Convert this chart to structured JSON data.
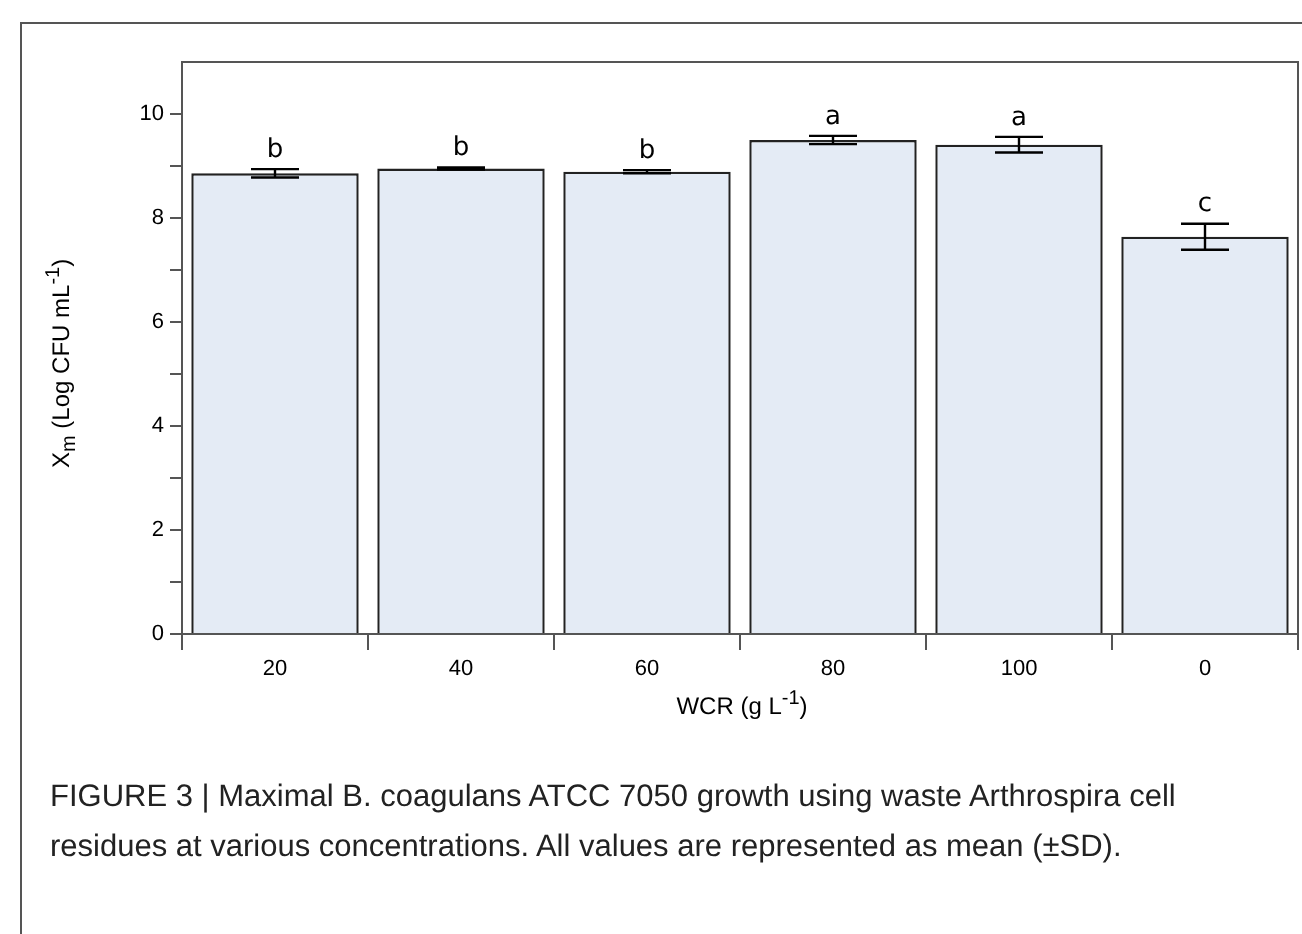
{
  "chart_data": {
    "type": "bar",
    "xlabel": "WCR (g L$^{-1}$)",
    "ylabel": "X$_{m}$ (Log CFU mL$^{-1}$)",
    "categories": [
      "20",
      "40",
      "60",
      "80",
      "100",
      "0"
    ],
    "values": [
      8.86,
      8.95,
      8.89,
      9.5,
      9.41,
      7.64
    ],
    "errors": [
      0.08,
      0.02,
      0.03,
      0.08,
      0.15,
      0.25
    ],
    "color": "#e4ebf5",
    "ylim": [
      0,
      11
    ],
    "yticks": [
      0,
      {
        "value": 1,
        "label": null
      },
      2,
      {
        "value": 3,
        "label": null
      },
      4,
      {
        "value": 5,
        "label": null
      },
      6,
      {
        "value": 7,
        "label": null
      },
      8,
      {
        "value": 9,
        "label": null
      },
      10
    ],
    "grid": false,
    "legend": false,
    "annotations": [
      {
        "text": "b",
        "x": "20",
        "y": 8.94
      },
      {
        "text": "b",
        "x": "40",
        "y": 8.97
      },
      {
        "text": "b",
        "x": "60",
        "y": 8.92
      },
      {
        "text": "a",
        "x": "80",
        "y": 9.58
      },
      {
        "text": "a",
        "x": "100",
        "y": 9.56
      },
      {
        "text": "c",
        "x": "0",
        "y": 7.89
      },
      "FIGURE 3 | Maximal B. coagulans ATCC 7050 growth using waste Arthrospira cell residues at various concentrations. All values are represented as mean (±SD)."
    ]
  }
}
